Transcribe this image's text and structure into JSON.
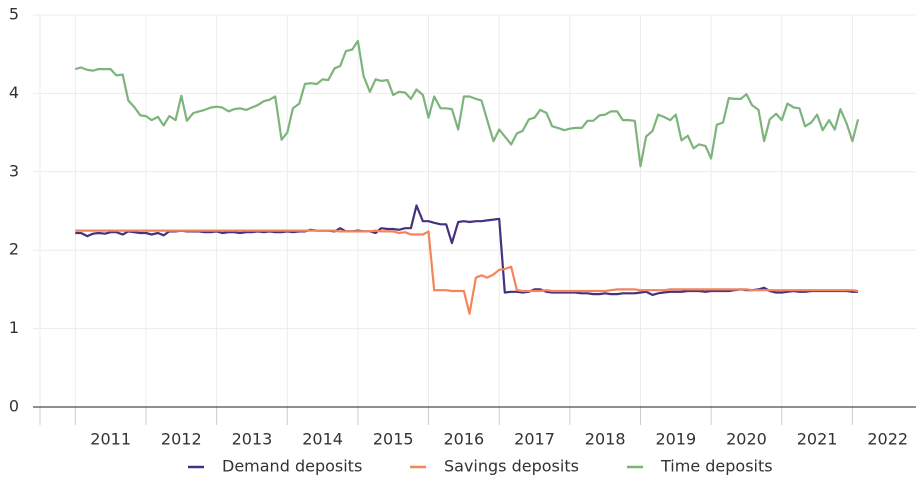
{
  "chart_data": {
    "type": "line",
    "x": [
      2011,
      2011.08,
      2011.17,
      2011.25,
      2011.33,
      2011.42,
      2011.5,
      2011.58,
      2011.67,
      2011.75,
      2011.83,
      2011.92,
      2012,
      2012.08,
      2012.17,
      2012.25,
      2012.33,
      2012.42,
      2012.5,
      2012.58,
      2012.67,
      2012.75,
      2012.83,
      2012.92,
      2013,
      2013.08,
      2013.17,
      2013.25,
      2013.33,
      2013.42,
      2013.5,
      2013.58,
      2013.67,
      2013.75,
      2013.83,
      2013.92,
      2014,
      2014.08,
      2014.17,
      2014.25,
      2014.33,
      2014.42,
      2014.5,
      2014.58,
      2014.67,
      2014.75,
      2014.83,
      2014.92,
      2015,
      2015.08,
      2015.17,
      2015.25,
      2015.33,
      2015.42,
      2015.5,
      2015.58,
      2015.67,
      2015.75,
      2015.83,
      2015.92,
      2016,
      2016.08,
      2016.17,
      2016.25,
      2016.33,
      2016.42,
      2016.5,
      2016.58,
      2016.67,
      2016.75,
      2016.83,
      2016.92,
      2017,
      2017.08,
      2017.17,
      2017.25,
      2017.33,
      2017.42,
      2017.5,
      2017.58,
      2017.67,
      2017.75,
      2017.83,
      2017.92,
      2018,
      2018.08,
      2018.17,
      2018.25,
      2018.33,
      2018.42,
      2018.5,
      2018.58,
      2018.67,
      2018.75,
      2018.83,
      2018.92,
      2019,
      2019.08,
      2019.17,
      2019.25,
      2019.33,
      2019.42,
      2019.5,
      2019.58,
      2019.67,
      2019.75,
      2019.83,
      2019.92,
      2020,
      2020.08,
      2020.17,
      2020.25,
      2020.33,
      2020.42,
      2020.5,
      2020.58,
      2020.67,
      2020.75,
      2020.83,
      2020.92,
      2021,
      2021.08,
      2021.17,
      2021.25,
      2021.33,
      2021.42,
      2021.5,
      2021.58,
      2021.67,
      2021.75,
      2021.83,
      2021.92,
      2022,
      2022.08
    ],
    "series": [
      {
        "name": "Demand deposits",
        "color": "#46307f",
        "values": [
          2.22,
          2.22,
          2.18,
          2.21,
          2.22,
          2.21,
          2.23,
          2.23,
          2.2,
          2.24,
          2.23,
          2.22,
          2.22,
          2.2,
          2.22,
          2.19,
          2.24,
          2.24,
          2.25,
          2.24,
          2.24,
          2.24,
          2.23,
          2.23,
          2.24,
          2.22,
          2.23,
          2.23,
          2.22,
          2.23,
          2.23,
          2.24,
          2.23,
          2.24,
          2.23,
          2.23,
          2.24,
          2.23,
          2.24,
          2.24,
          2.26,
          2.25,
          2.25,
          2.25,
          2.24,
          2.28,
          2.24,
          2.24,
          2.25,
          2.24,
          2.24,
          2.22,
          2.28,
          2.27,
          2.27,
          2.26,
          2.28,
          2.28,
          2.57,
          2.37,
          2.37,
          2.35,
          2.33,
          2.33,
          2.09,
          2.36,
          2.37,
          2.36,
          2.37,
          2.37,
          2.38,
          2.39,
          2.4,
          1.46,
          1.47,
          1.47,
          1.46,
          1.47,
          1.5,
          1.5,
          1.47,
          1.46,
          1.46,
          1.46,
          1.46,
          1.46,
          1.45,
          1.45,
          1.44,
          1.44,
          1.45,
          1.44,
          1.44,
          1.45,
          1.45,
          1.45,
          1.46,
          1.47,
          1.43,
          1.45,
          1.46,
          1.47,
          1.47,
          1.47,
          1.48,
          1.48,
          1.48,
          1.47,
          1.48,
          1.48,
          1.48,
          1.48,
          1.49,
          1.5,
          1.49,
          1.49,
          1.5,
          1.52,
          1.48,
          1.46,
          1.46,
          1.47,
          1.48,
          1.47,
          1.47,
          1.48,
          1.48,
          1.48,
          1.48,
          1.48,
          1.48,
          1.48,
          1.47,
          1.47
        ]
      },
      {
        "name": "Savings deposits",
        "color": "#f4845a",
        "values": [
          2.25,
          2.25,
          2.25,
          2.25,
          2.25,
          2.25,
          2.25,
          2.25,
          2.25,
          2.25,
          2.25,
          2.25,
          2.25,
          2.25,
          2.25,
          2.25,
          2.25,
          2.25,
          2.25,
          2.25,
          2.25,
          2.25,
          2.25,
          2.25,
          2.25,
          2.25,
          2.25,
          2.25,
          2.25,
          2.25,
          2.25,
          2.25,
          2.25,
          2.25,
          2.25,
          2.25,
          2.25,
          2.25,
          2.25,
          2.25,
          2.25,
          2.25,
          2.25,
          2.25,
          2.25,
          2.24,
          2.24,
          2.24,
          2.24,
          2.24,
          2.24,
          2.25,
          2.24,
          2.24,
          2.24,
          2.22,
          2.23,
          2.2,
          2.2,
          2.2,
          2.24,
          1.49,
          1.49,
          1.49,
          1.48,
          1.48,
          1.48,
          1.19,
          1.65,
          1.68,
          1.65,
          1.69,
          1.75,
          1.76,
          1.79,
          1.49,
          1.48,
          1.48,
          1.48,
          1.48,
          1.49,
          1.48,
          1.48,
          1.48,
          1.48,
          1.48,
          1.48,
          1.48,
          1.48,
          1.48,
          1.48,
          1.49,
          1.5,
          1.5,
          1.5,
          1.5,
          1.49,
          1.49,
          1.49,
          1.49,
          1.49,
          1.5,
          1.5,
          1.5,
          1.5,
          1.5,
          1.5,
          1.5,
          1.5,
          1.5,
          1.5,
          1.5,
          1.5,
          1.5,
          1.5,
          1.49,
          1.49,
          1.49,
          1.49,
          1.49,
          1.49,
          1.49,
          1.49,
          1.49,
          1.49,
          1.49,
          1.49,
          1.49,
          1.49,
          1.49,
          1.49,
          1.49,
          1.49,
          1.48
        ]
      },
      {
        "name": "Time deposits",
        "color": "#7db47c",
        "values": [
          4.31,
          4.33,
          4.3,
          4.29,
          4.31,
          4.31,
          4.31,
          4.23,
          4.24,
          3.91,
          3.83,
          3.72,
          3.71,
          3.66,
          3.7,
          3.59,
          3.71,
          3.66,
          3.97,
          3.65,
          3.75,
          3.77,
          3.79,
          3.82,
          3.83,
          3.82,
          3.77,
          3.8,
          3.81,
          3.79,
          3.82,
          3.85,
          3.9,
          3.92,
          3.96,
          3.41,
          3.5,
          3.81,
          3.87,
          4.12,
          4.13,
          4.12,
          4.18,
          4.17,
          4.32,
          4.35,
          4.54,
          4.56,
          4.67,
          4.22,
          4.02,
          4.18,
          4.16,
          4.17,
          3.98,
          4.02,
          4.01,
          3.93,
          4.05,
          3.98,
          3.69,
          3.96,
          3.81,
          3.81,
          3.8,
          3.54,
          3.96,
          3.96,
          3.93,
          3.91,
          3.66,
          3.39,
          3.54,
          3.45,
          3.35,
          3.49,
          3.52,
          3.67,
          3.69,
          3.79,
          3.75,
          3.58,
          3.56,
          3.53,
          3.55,
          3.56,
          3.56,
          3.65,
          3.65,
          3.72,
          3.73,
          3.77,
          3.77,
          3.66,
          3.66,
          3.65,
          3.07,
          3.45,
          3.52,
          3.73,
          3.7,
          3.66,
          3.73,
          3.4,
          3.46,
          3.3,
          3.35,
          3.33,
          3.17,
          3.6,
          3.63,
          3.94,
          3.93,
          3.93,
          3.99,
          3.85,
          3.79,
          3.39,
          3.67,
          3.74,
          3.66,
          3.87,
          3.82,
          3.81,
          3.58,
          3.63,
          3.73,
          3.53,
          3.66,
          3.54,
          3.8,
          3.61,
          3.39,
          3.67
        ]
      }
    ],
    "xlim": [
      2010.5,
      2022.9
    ],
    "xticks": [
      2011,
      2012,
      2013,
      2014,
      2015,
      2016,
      2017,
      2018,
      2019,
      2020,
      2021,
      2022
    ],
    "ylim": [
      0,
      5
    ],
    "yticks": [
      0,
      1,
      2,
      3,
      4,
      5
    ],
    "grid": true,
    "legend": "bottom"
  }
}
